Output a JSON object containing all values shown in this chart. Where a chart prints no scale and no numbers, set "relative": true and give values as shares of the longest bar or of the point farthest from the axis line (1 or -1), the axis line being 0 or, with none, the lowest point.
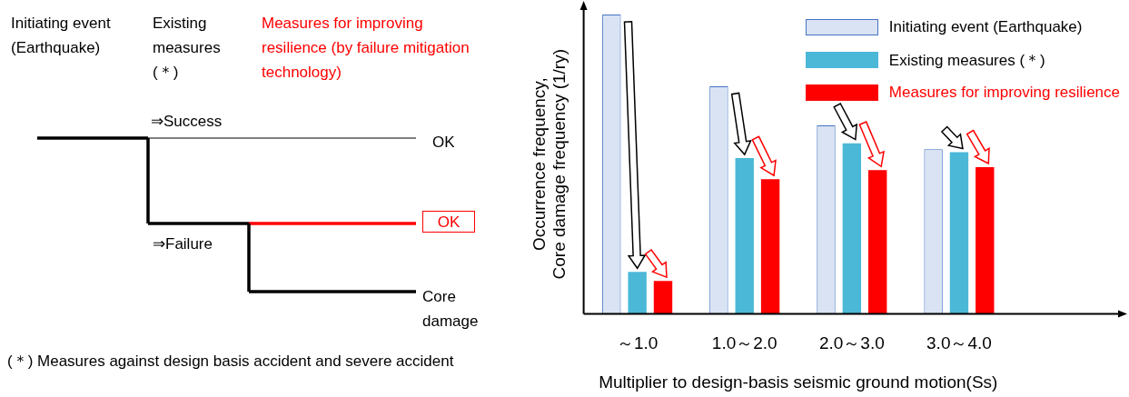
{
  "chart_data": [
    {
      "type": "other",
      "annotations": [
        "Initiating event (Earthquake)",
        "Existing measures (＊)",
        "Measures for improving resilience (by failure mitigation technology)",
        "⇒Success",
        "OK",
        "⇒Failure",
        "OK",
        "Core damage",
        "(＊) Measures against design basis accident and severe accident"
      ]
    },
    {
      "type": "bar",
      "relative": true,
      "categories": [
        "～1.0",
        "1.0～2.0",
        "2.0～3.0",
        "3.0～4.0"
      ],
      "xlabel": "Multiplier to design-basis seismic ground motion(Ss)",
      "ylabel": "Occurrence frequency,\nCore damage frequency (1/ry)",
      "series": [
        {
          "name": "Initiating event (Earthquake)",
          "color": "#dae3f3",
          "values": [
            1,
            0.76,
            0.63,
            0.55
          ]
        },
        {
          "name": "Existing measures (＊)",
          "color": "#4bb8d8",
          "values": [
            0.14,
            0.52,
            0.57,
            0.54
          ]
        },
        {
          "name": "Measures for improving resilience",
          "color": "#ff0000",
          "values": [
            0.11,
            0.45,
            0.48,
            0.49
          ]
        }
      ],
      "legend": "top right",
      "grid": false
    }
  ]
}
